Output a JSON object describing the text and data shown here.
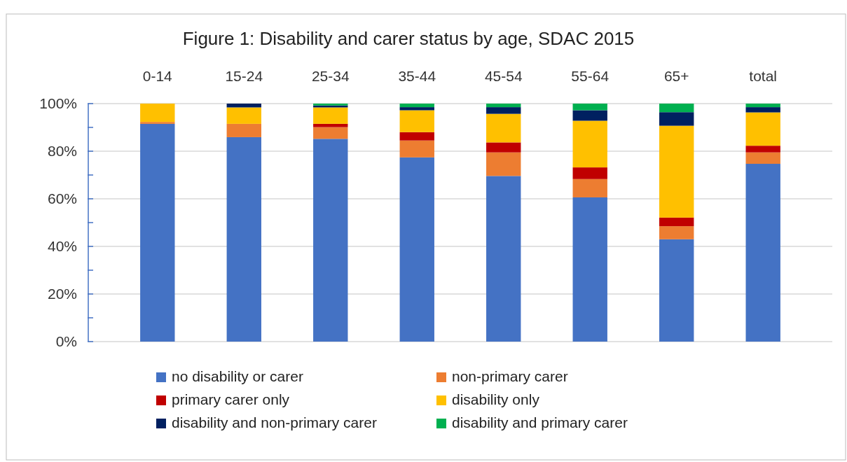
{
  "chart_data": {
    "type": "bar",
    "title": "Figure 1: Disability and carer status by age, SDAC 2015",
    "categories": [
      "0-14",
      "15-24",
      "25-34",
      "35-44",
      "45-54",
      "55-64",
      "65+",
      "total"
    ],
    "stacked": true,
    "series": [
      {
        "name": "no disability or carer",
        "color": "#4472c4",
        "values": [
          91.5,
          85.9,
          85.2,
          77.4,
          69.6,
          60.6,
          43.0,
          74.7
        ]
      },
      {
        "name": "non-primary carer",
        "color": "#ed7d31",
        "values": [
          0.8,
          5.6,
          4.9,
          7.1,
          9.9,
          7.7,
          5.5,
          4.8
        ]
      },
      {
        "name": "primary carer only",
        "color": "#c00000",
        "values": [
          0,
          0,
          1.4,
          3.5,
          4.2,
          4.9,
          3.6,
          2.8
        ]
      },
      {
        "name": "disability only",
        "color": "#ffc000",
        "values": [
          7.7,
          6.9,
          6.9,
          9.2,
          12.0,
          19.6,
          38.6,
          14.0
        ]
      },
      {
        "name": "disability and non-primary carer",
        "color": "#002060",
        "values": [
          0,
          1.6,
          0.8,
          1.3,
          2.8,
          4.4,
          5.7,
          2.2
        ]
      },
      {
        "name": "disability and primary carer",
        "color": "#00b050",
        "values": [
          0,
          0,
          0.8,
          1.5,
          1.5,
          2.8,
          3.6,
          1.5
        ]
      }
    ],
    "ylim": [
      0,
      100
    ],
    "yticks": [
      {
        "value": 0,
        "label": "0%"
      },
      {
        "value": 10,
        "label": null
      },
      {
        "value": 20,
        "label": "20%"
      },
      {
        "value": 30,
        "label": null
      },
      {
        "value": 40,
        "label": "40%"
      },
      {
        "value": 50,
        "label": null
      },
      {
        "value": 60,
        "label": "60%"
      },
      {
        "value": 70,
        "label": null
      },
      {
        "value": 80,
        "label": "80%"
      },
      {
        "value": 90,
        "label": null
      },
      {
        "value": 100,
        "label": "100%"
      }
    ],
    "grid": "y",
    "legend": "bottom"
  }
}
